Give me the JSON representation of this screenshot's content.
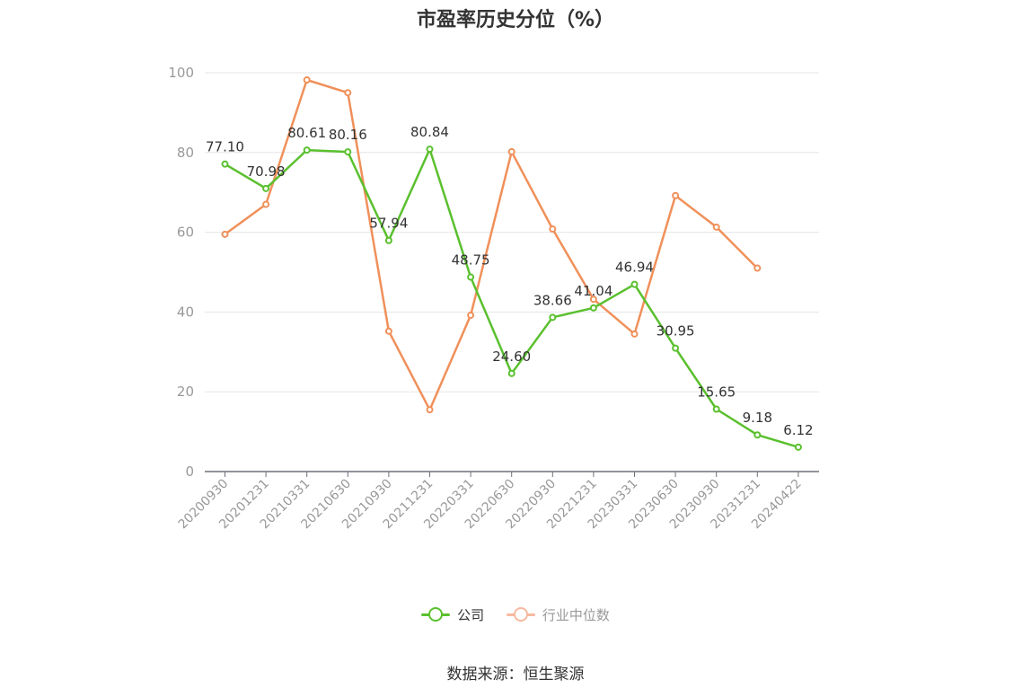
{
  "chart_data": {
    "type": "line",
    "title": "市盈率历史分位（%）",
    "categories": [
      "20200930",
      "20201231",
      "20210331",
      "20210630",
      "20210930",
      "20211231",
      "20220331",
      "20220630",
      "20220930",
      "20221231",
      "20230331",
      "20230630",
      "20230930",
      "20231231",
      "20240422"
    ],
    "ylim": [
      0,
      100
    ],
    "yticks": [
      0,
      20,
      40,
      60,
      80,
      100
    ],
    "grid": true,
    "legend_position": "bottom",
    "series": [
      {
        "name": "公司",
        "color": "#5ac02e",
        "values": [
          77.1,
          70.98,
          80.61,
          80.16,
          57.94,
          80.84,
          48.75,
          24.6,
          38.66,
          41.04,
          46.94,
          30.95,
          15.65,
          9.18,
          6.12
        ],
        "labels": [
          "77.10",
          "70.98",
          "80.61",
          "80.16",
          "57.94",
          "80.84",
          "48.75",
          "24.60",
          "38.66",
          "41.04",
          "46.94",
          "30.95",
          "15.65",
          "9.18",
          "6.12"
        ]
      },
      {
        "name": "行业中位数",
        "color": "#f0905a",
        "legend_color": "#f7b9a0",
        "values": [
          59.5,
          67.0,
          98.2,
          95.0,
          35.2,
          15.5,
          39.2,
          80.2,
          60.8,
          43.2,
          34.5,
          69.2,
          61.3,
          51.0,
          null
        ]
      }
    ]
  },
  "source": "数据来源：恒生聚源"
}
